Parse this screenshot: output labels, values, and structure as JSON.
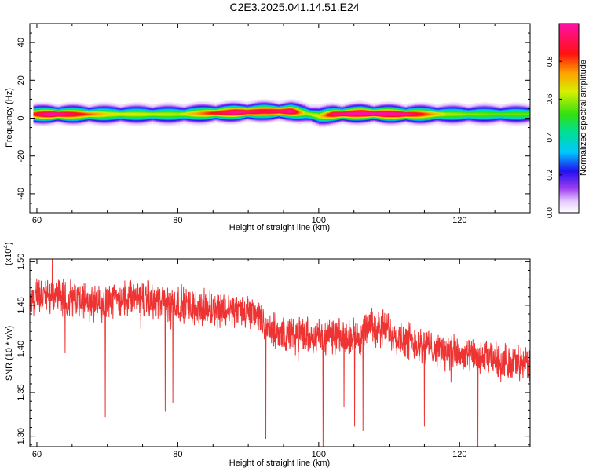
{
  "title": "C2E3.2025.041.14.51.E24",
  "chart_data": [
    {
      "type": "heatmap",
      "xlabel": "Height of straight line (km)",
      "ylabel": "Frequency (Hz)",
      "xlim": [
        59,
        130
      ],
      "ylim": [
        -50,
        50
      ],
      "x_ticks": [
        60,
        80,
        100,
        120
      ],
      "y_ticks": [
        40,
        20,
        0,
        -20,
        -40
      ],
      "colorbar": {
        "label": "Normalized spectral amplitude",
        "range": [
          0.0,
          1.0
        ],
        "ticks": [
          0.0,
          0.2,
          0.4,
          0.6,
          0.8
        ],
        "tick_labels": [
          "0.0",
          "0.2",
          "0.4",
          "0.6",
          "0.8"
        ]
      },
      "ridge": {
        "x": [
          59.5,
          62,
          70,
          80,
          88,
          92,
          96,
          98,
          100,
          102,
          106,
          112,
          118,
          124,
          130
        ],
        "center_freq_hz": [
          2,
          2,
          2,
          2,
          3,
          3.5,
          3.5,
          2.5,
          1,
          2,
          2.5,
          2,
          2,
          2,
          2
        ],
        "peak_amplitude": [
          0.8,
          1.0,
          0.6,
          0.55,
          0.95,
          0.85,
          0.95,
          0.55,
          0.6,
          0.9,
          1.0,
          0.95,
          0.55,
          0.5,
          0.5
        ]
      }
    },
    {
      "type": "line",
      "xlabel": "Height of straight line (km)",
      "ylabel": "SNR (10 * v/v)",
      "y_multiplier": "(x10",
      "y_multiplier_exp": "4",
      "y_multiplier_close": ")",
      "xlim": [
        59,
        130
      ],
      "ylim": [
        1.288,
        1.503
      ],
      "x_ticks": [
        60,
        80,
        100,
        120
      ],
      "y_ticks": [
        1.3,
        1.35,
        1.4,
        1.45,
        1.5
      ],
      "y_tick_labels": [
        "1.30",
        "1.35",
        "1.40",
        "1.45",
        "1.50"
      ],
      "color": "#ee3333",
      "trend": {
        "x": [
          59,
          60,
          62,
          64,
          66,
          68,
          70,
          72,
          75,
          78,
          80,
          82,
          85,
          88,
          91,
          92,
          93,
          95,
          97,
          100,
          103,
          106,
          107,
          109,
          112,
          115,
          118,
          121,
          124,
          127,
          130
        ],
        "y": [
          1.452,
          1.462,
          1.462,
          1.458,
          1.455,
          1.453,
          1.455,
          1.458,
          1.458,
          1.452,
          1.453,
          1.448,
          1.446,
          1.444,
          1.443,
          1.428,
          1.42,
          1.418,
          1.416,
          1.415,
          1.413,
          1.415,
          1.425,
          1.425,
          1.412,
          1.405,
          1.397,
          1.392,
          1.388,
          1.385,
          1.383
        ]
      },
      "dips": [
        {
          "x": 62.2,
          "y": 1.503
        },
        {
          "x": 64.0,
          "y": 1.395
        },
        {
          "x": 69.7,
          "y": 1.322
        },
        {
          "x": 78.2,
          "y": 1.328
        },
        {
          "x": 79.3,
          "y": 1.338
        },
        {
          "x": 92.5,
          "y": 1.297
        },
        {
          "x": 100.6,
          "y": 1.288
        },
        {
          "x": 103.6,
          "y": 1.333
        },
        {
          "x": 105.1,
          "y": 1.311
        },
        {
          "x": 106.3,
          "y": 1.306
        },
        {
          "x": 115.0,
          "y": 1.311
        },
        {
          "x": 122.6,
          "y": 1.288
        }
      ]
    }
  ]
}
